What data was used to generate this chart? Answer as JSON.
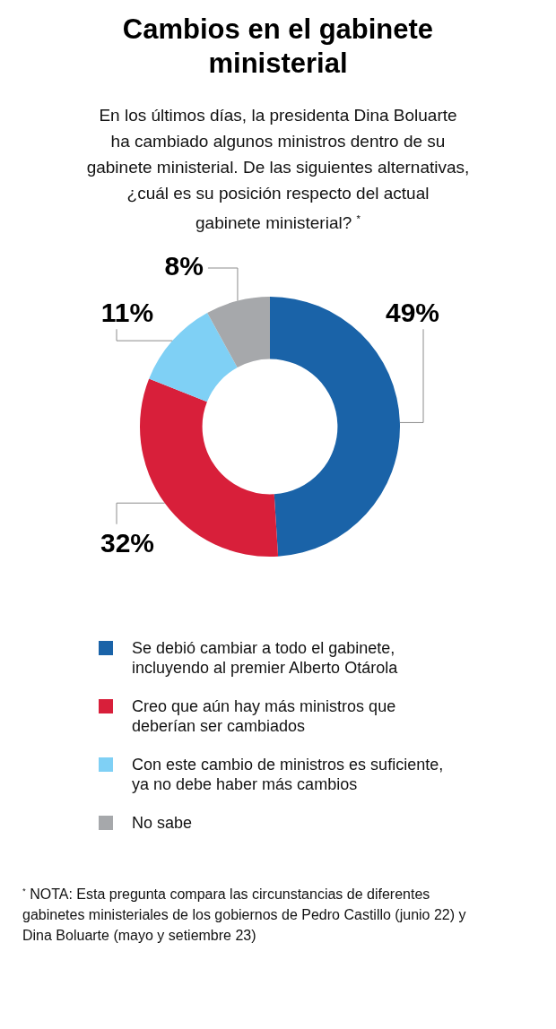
{
  "chart_data": {
    "type": "donut",
    "title": "Cambios en el gabinete ministerial",
    "subtitle": "En los últimos días, la presidenta Dina Boluarte\nha cambiado algunos ministros dentro de su\ngabinete ministerial. De las siguientes alternativas,\n¿cuál es su posición respecto del actual\ngabinete ministerial? $^{*}$",
    "categories": [
      "Se debió cambiar a todo el gabinete,\nincluyendo al premier Alberto Otárola",
      "Creo que aún hay más ministros que\ndeberían ser cambiados",
      "Con este cambio de ministros es suficiente,\nya no debe haber más cambios",
      "No sabe"
    ],
    "values": [
      49,
      32,
      11,
      8
    ],
    "colors": [
      "#1a63a8",
      "#d81f3a",
      "#7fd0f5",
      "#a6a8ab"
    ],
    "value_labels": [
      "49%",
      "32%",
      "11%",
      "8%"
    ],
    "legend": "bottom",
    "annotations": [
      "$^{*}$ NOTA: Esta pregunta compara las circunstancias de diferentes\ngabinetes ministeriales de los gobiernos de Pedro Castillo (junio 22) y\nDina Boluarte (mayo y setiembre 23)"
    ]
  }
}
